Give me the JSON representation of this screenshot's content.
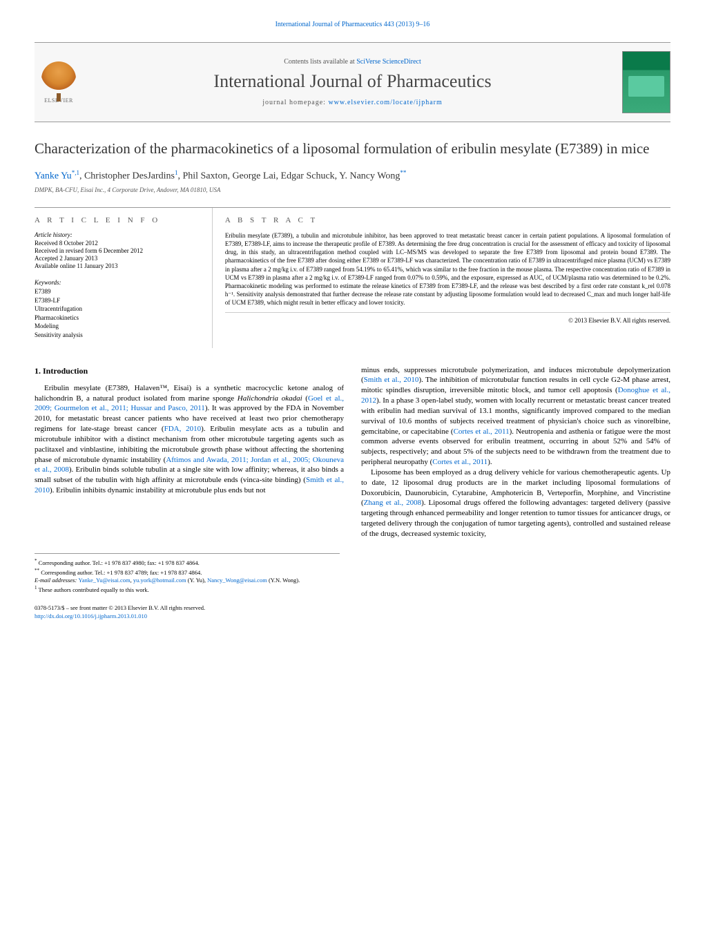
{
  "header": {
    "top_ref": "International Journal of Pharmaceutics 443 (2013) 9–16",
    "contents_prefix": "Contents lists available at ",
    "contents_link": "SciVerse ScienceDirect",
    "journal_name": "International Journal of Pharmaceutics",
    "homepage_prefix": "journal homepage: ",
    "homepage_link": "www.elsevier.com/locate/ijpharm",
    "publisher_name": "ELSEVIER"
  },
  "article": {
    "title": "Characterization of the pharmacokinetics of a liposomal formulation of eribulin mesylate (E7389) in mice",
    "authors_html": "Yanke Yu",
    "author_sup1": "*,1",
    "sep1": ", Christopher DesJardins",
    "author_sup2": "1",
    "sep2": ", Phil Saxton, George Lai, Edgar Schuck, Y. Nancy Wong",
    "author_sup3": "**",
    "affiliation": "DMPK, BA-CFU, Eisai Inc., 4 Corporate Drive, Andover, MA 01810, USA"
  },
  "meta": {
    "info_heading": "a r t i c l e   i n f o",
    "abstract_heading": "a b s t r a c t",
    "history_label": "Article history:",
    "history": [
      "Received 8 October 2012",
      "Received in revised form 6 December 2012",
      "Accepted 2 January 2013",
      "Available online 11 January 2013"
    ],
    "keywords_label": "Keywords:",
    "keywords": [
      "E7389",
      "E7389-LF",
      "Ultracentrifugation",
      "Pharmacokinetics",
      "Modeling",
      "Sensitivity analysis"
    ],
    "abstract": "Eribulin mesylate (E7389), a tubulin and microtubule inhibitor, has been approved to treat metastatic breast cancer in certain patient populations. A liposomal formulation of E7389, E7389-LF, aims to increase the therapeutic profile of E7389. As determining the free drug concentration is crucial for the assessment of efficacy and toxicity of liposomal drug, in this study, an ultracentrifugation method coupled with LC–MS/MS was developed to separate the free E7389 from liposomal and protein bound E7389. The pharmacokinetics of the free E7389 after dosing either E7389 or E7389-LF was characterized. The concentration ratio of E7389 in ultracentrifuged mice plasma (UCM) vs E7389 in plasma after a 2 mg/kg i.v. of E7389 ranged from 54.19% to 65.41%, which was similar to the free fraction in the mouse plasma. The respective concentration ratio of E7389 in UCM vs E7389 in plasma after a 2 mg/kg i.v. of E7389-LF ranged from 0.07% to 0.59%, and the exposure, expressed as AUC, of UCM/plasma ratio was determined to be 0.2%. Pharmacokinetic modeling was performed to estimate the release kinetics of E7389 from E7389-LF, and the release was best described by a first order rate constant k_rel 0.078 h⁻¹. Sensitivity analysis demonstrated that further decrease the release rate constant by adjusting liposome formulation would lead to decreased C_max and much longer half-life of UCM E7389, which might result in better efficacy and lower toxicity.",
    "copyright": "© 2013 Elsevier B.V. All rights reserved."
  },
  "body": {
    "section1_heading": "1.  Introduction",
    "col1_p1_a": "Eribulin mesylate (E7389, Halaven™, Eisai) is a synthetic macrocyclic ketone analog of halichondrin B, a natural product isolated from marine sponge ",
    "col1_p1_sp": "Halichondria okadai",
    "col1_p1_b": " (",
    "col1_ref1": "Goel et al., 2009; Gourmelon et al., 2011; Hussar and Pasco, 2011",
    "col1_p1_c": "). It was approved by the FDA in November 2010, for metastatic breast cancer patients who have received at least two prior chemotherapy regimens for late-stage breast cancer (",
    "col1_ref2": "FDA, 2010",
    "col1_p1_d": "). Eribulin mesylate acts as a tubulin and microtubule inhibitor with a distinct mechanism from other microtubule targeting agents such as paclitaxel and vinblastine, inhibiting the microtubule growth phase without affecting the shortening phase of microtubule dynamic instability (",
    "col1_ref3": "Aftimos and Awada, 2011; Jordan et al., 2005; Okouneva et al., 2008",
    "col1_p1_e": "). Eribulin binds soluble tubulin at a single site with low affinity; whereas, it also binds a small subset of the tubulin with high affinity at microtubule ends (vinca-site binding) (",
    "col1_ref4": "Smith et al., 2010",
    "col1_p1_f": "). Eribulin inhibits dynamic instability at microtubule plus ends but not",
    "col2_p1_a": "minus ends, suppresses microtubule polymerization, and induces microtubule depolymerization (",
    "col2_ref1": "Smith et al., 2010",
    "col2_p1_b": "). The inhibition of microtubular function results in cell cycle G2-M phase arrest, mitotic spindles disruption, irreversible mitotic block, and tumor cell apoptosis (",
    "col2_ref2": "Donoghue et al., 2012",
    "col2_p1_c": "). In a phase 3 open-label study, women with locally recurrent or metastatic breast cancer treated with eribulin had median survival of 13.1 months, significantly improved compared to the median survival of 10.6 months of subjects received treatment of physician's choice such as vinorelbine, gemcitabine, or capecitabine (",
    "col2_ref3": "Cortes et al., 2011",
    "col2_p1_d": "). Neutropenia and asthenia or fatigue were the most common adverse events observed for eribulin treatment, occurring in about 52% and 54% of subjects, respectively; and about 5% of the subjects need to be withdrawn from the treatment due to peripheral neuropathy (",
    "col2_ref4": "Cortes et al., 2011",
    "col2_p1_e": ").",
    "col2_p2_a": "Liposome has been employed as a drug delivery vehicle for various chemotherapeutic agents. Up to date, 12 liposomal drug products are in the market including liposomal formulations of Doxorubicin, Daunorubicin, Cytarabine, Amphotericin B, Verteporfin, Morphine, and Vincristine (",
    "col2_ref5": "Zhang et al., 2008",
    "col2_p2_b": "). Liposomal drugs offered the following advantages: targeted delivery (passive targeting through enhanced permeability and longer retention to tumor tissues for anticancer drugs, or targeted delivery through the conjugation of tumor targeting agents), controlled and sustained release of the drugs, decreased systemic toxicity,"
  },
  "footnotes": {
    "f1_marker": "*",
    "f1_text": " Corresponding author. Tel.: +1 978 837 4980; fax: +1 978 837 4864.",
    "f2_marker": "**",
    "f2_text": " Corresponding author. Tel.: +1 978 837 4789; fax: +1 978 837 4864.",
    "email_label": "E-mail addresses: ",
    "email1": "Yanke_Yu@eisai.com",
    "email_sep1": ", ",
    "email2": "yu.york@hotmail.com",
    "email_attr1": " (Y. Yu), ",
    "email3": "Nancy_Wong@eisai.com",
    "email_attr2": " (Y.N. Wong).",
    "f3_marker": "1",
    "f3_text": " These authors contributed equally to this work."
  },
  "bottom": {
    "issn_line": "0378-5173/$ – see front matter © 2013 Elsevier B.V. All rights reserved.",
    "doi": "http://dx.doi.org/10.1016/j.ijpharm.2013.01.010"
  },
  "colors": {
    "link": "#0066cc",
    "text": "#000000",
    "muted": "#555555",
    "border": "#999999",
    "banner_bg": "#f7f7f7"
  },
  "typography": {
    "base_fontsize_pt": 9,
    "title_fontsize_pt": 16,
    "journal_name_fontsize_pt": 20,
    "body_fontsize_pt": 8.5,
    "font_family": "Georgia, Times New Roman, serif"
  }
}
